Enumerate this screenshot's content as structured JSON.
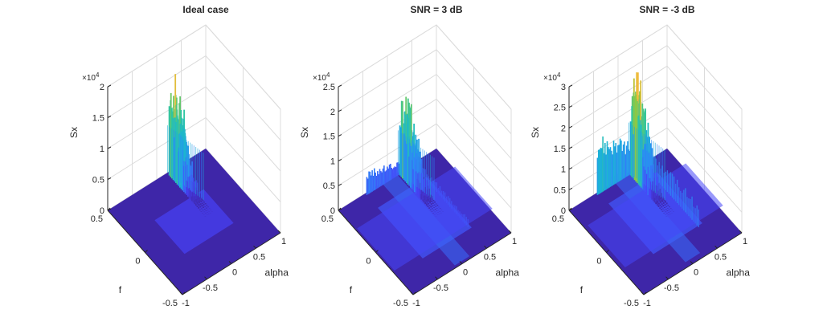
{
  "figure": {
    "background": "#ffffff",
    "colormap": [
      "#3e26a8",
      "#4743f8",
      "#2e87f7",
      "#1ab2d6",
      "#2fc6a2",
      "#9dc935",
      "#f4ba3d",
      "#f9fb15"
    ]
  },
  "chart_data": [
    {
      "type": "surface",
      "title": "Ideal case",
      "xlabel": "alpha",
      "ylabel": "f",
      "zlabel": "Sx",
      "z_exponent_label": "×10",
      "z_exponent": "4",
      "xlim": [
        -1,
        1
      ],
      "ylim": [
        -0.5,
        0.5
      ],
      "zlim": [
        0,
        20000
      ],
      "x_ticks": [
        "-1",
        "-0.5",
        "0",
        "0.5",
        "1"
      ],
      "y_ticks": [
        "-0.5",
        "0",
        "0.5"
      ],
      "z_ticks": [
        "0",
        "0.5",
        "1",
        "1.5",
        "2"
      ],
      "z_tick_values": [
        0,
        0.5,
        1,
        1.5,
        2
      ],
      "grid": true,
      "peak_value": 17000,
      "features": {
        "main_ridge": {
          "alpha": 0,
          "f_range": [
            -0.25,
            0.25
          ],
          "max_height": 17000
        },
        "noise_floor": 0,
        "cross_band": false,
        "side_ridge": null
      }
    },
    {
      "type": "surface",
      "title": "SNR = 3 dB",
      "xlabel": "alpha",
      "ylabel": "f",
      "zlabel": "Sx",
      "z_exponent_label": "×10",
      "z_exponent": "4",
      "xlim": [
        -1,
        1
      ],
      "ylim": [
        -0.5,
        0.5
      ],
      "zlim": [
        0,
        25000
      ],
      "x_ticks": [
        "-1",
        "-0.5",
        "0",
        "0.5",
        "1"
      ],
      "y_ticks": [
        "-0.5",
        "0",
        "0.5"
      ],
      "z_ticks": [
        "0",
        "0.5",
        "1",
        "1.5",
        "2",
        "2.5"
      ],
      "z_tick_values": [
        0,
        0.5,
        1,
        1.5,
        2,
        2.5
      ],
      "grid": true,
      "peak_value": 19000,
      "features": {
        "main_ridge": {
          "alpha": 0,
          "f_range": [
            -0.25,
            0.25
          ],
          "max_height": 19000
        },
        "noise_floor": 2000,
        "cross_band": true,
        "side_ridge": {
          "f": 0.25,
          "max_height": 5000
        }
      }
    },
    {
      "type": "surface",
      "title": "SNR = -3 dB",
      "xlabel": "alpha",
      "ylabel": "f",
      "zlabel": "Sx",
      "z_exponent_label": "×10",
      "z_exponent": "4",
      "xlim": [
        -1,
        1
      ],
      "ylim": [
        -0.5,
        0.5
      ],
      "zlim": [
        0,
        30000
      ],
      "x_ticks": [
        "-1",
        "-0.5",
        "0",
        "0.5",
        "1"
      ],
      "y_ticks": [
        "-0.5",
        "0",
        "0.5"
      ],
      "z_ticks": [
        "0",
        "0.5",
        "1",
        "1.5",
        "2",
        "2.5",
        "3"
      ],
      "z_tick_values": [
        0,
        0.5,
        1,
        1.5,
        2,
        2.5,
        3
      ],
      "grid": true,
      "peak_value": 27000,
      "features": {
        "main_ridge": {
          "alpha": 0,
          "f_range": [
            -0.25,
            0.25
          ],
          "max_height": 27000
        },
        "noise_floor": 5000,
        "cross_band": true,
        "side_ridge": {
          "f": 0.25,
          "max_height": 15000
        }
      }
    }
  ]
}
